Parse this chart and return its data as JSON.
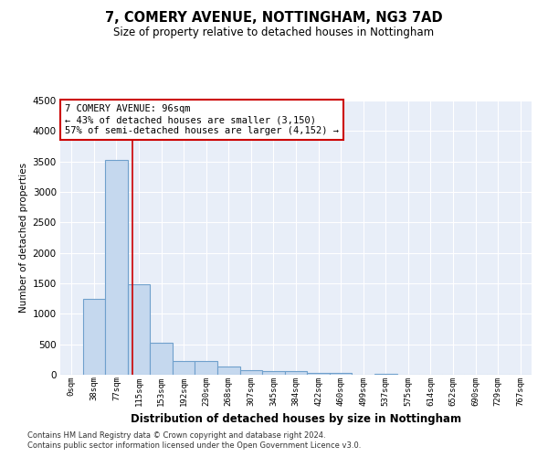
{
  "title": "7, COMERY AVENUE, NOTTINGHAM, NG3 7AD",
  "subtitle": "Size of property relative to detached houses in Nottingham",
  "xlabel": "Distribution of detached houses by size in Nottingham",
  "ylabel": "Number of detached properties",
  "bar_labels": [
    "0sqm",
    "38sqm",
    "77sqm",
    "115sqm",
    "153sqm",
    "192sqm",
    "230sqm",
    "268sqm",
    "307sqm",
    "345sqm",
    "384sqm",
    "422sqm",
    "460sqm",
    "499sqm",
    "537sqm",
    "575sqm",
    "614sqm",
    "652sqm",
    "690sqm",
    "729sqm",
    "767sqm"
  ],
  "bar_values": [
    2,
    1250,
    3530,
    1480,
    530,
    225,
    225,
    130,
    80,
    60,
    60,
    30,
    30,
    0,
    20,
    0,
    0,
    0,
    0,
    0,
    0
  ],
  "bar_color": "#c5d8ee",
  "bar_edge_color": "#6fa0cc",
  "bar_linewidth": 0.8,
  "vline_x": 2.72,
  "vline_color": "#cc0000",
  "ylim": [
    0,
    4500
  ],
  "yticks": [
    0,
    500,
    1000,
    1500,
    2000,
    2500,
    3000,
    3500,
    4000,
    4500
  ],
  "annotation_text": "7 COMERY AVENUE: 96sqm\n← 43% of detached houses are smaller (3,150)\n57% of semi-detached houses are larger (4,152) →",
  "annotation_box_color": "#ffffff",
  "annotation_box_edgecolor": "#cc0000",
  "bg_color": "#e8eef8",
  "grid_color": "#ffffff",
  "footer_line1": "Contains HM Land Registry data © Crown copyright and database right 2024.",
  "footer_line2": "Contains public sector information licensed under the Open Government Licence v3.0."
}
